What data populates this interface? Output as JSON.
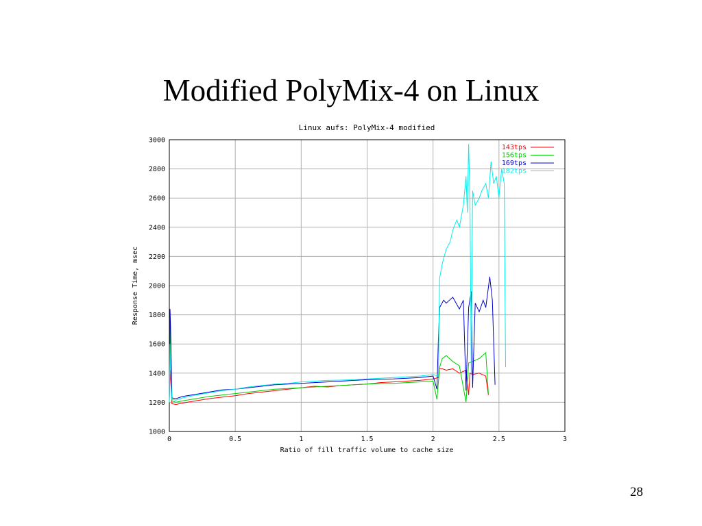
{
  "slide": {
    "title": "Modified PolyMix-4 on Linux",
    "page_number": "28"
  },
  "chart_data": {
    "type": "line",
    "title": "Linux aufs: PolyMix-4 modified",
    "xlabel": "Ratio of fill traffic volume to cache size",
    "ylabel": "Response Time, msec",
    "xlim": [
      0,
      3
    ],
    "ylim": [
      1000,
      3000
    ],
    "x_ticks": [
      0,
      0.5,
      1,
      1.5,
      2,
      2.5,
      3
    ],
    "x_tick_labels": [
      "0",
      "0.5",
      "1",
      "1.5",
      "2",
      "2.5",
      "3"
    ],
    "y_ticks": [
      1000,
      1200,
      1400,
      1600,
      1800,
      2000,
      2200,
      2400,
      2600,
      2800,
      3000
    ],
    "y_tick_labels": [
      "1000",
      "1200",
      "1400",
      "1600",
      "1800",
      "2000",
      "2200",
      "2400",
      "2600",
      "2800",
      "3000"
    ],
    "grid": true,
    "legend_position": "top-right",
    "series": [
      {
        "name": "143tps",
        "color": "#ff0000",
        "x": [
          0,
          0.005,
          0.01,
          0.02,
          0.05,
          0.1,
          0.2,
          0.3,
          0.4,
          0.5,
          0.6,
          0.7,
          0.8,
          0.9,
          1.0,
          1.1,
          1.2,
          1.3,
          1.4,
          1.5,
          1.6,
          1.7,
          1.8,
          1.9,
          2.0,
          2.04,
          2.05,
          2.07,
          2.1,
          2.15,
          2.2,
          2.25,
          2.27,
          2.28,
          2.3,
          2.35,
          2.4,
          2.42
        ],
        "y": [
          1200,
          1420,
          1350,
          1190,
          1185,
          1195,
          1210,
          1225,
          1235,
          1245,
          1260,
          1270,
          1280,
          1290,
          1300,
          1310,
          1305,
          1315,
          1320,
          1325,
          1335,
          1340,
          1345,
          1350,
          1360,
          1370,
          1430,
          1430,
          1420,
          1430,
          1400,
          1420,
          1250,
          1400,
          1390,
          1400,
          1380,
          1250
        ]
      },
      {
        "name": "156tps",
        "color": "#00cc00",
        "x": [
          0,
          0.005,
          0.01,
          0.02,
          0.05,
          0.1,
          0.2,
          0.3,
          0.4,
          0.5,
          0.6,
          0.7,
          0.8,
          0.9,
          1.0,
          1.1,
          1.2,
          1.3,
          1.4,
          1.5,
          1.6,
          1.7,
          1.8,
          1.9,
          2.0,
          2.03,
          2.05,
          2.07,
          2.1,
          2.15,
          2.2,
          2.25,
          2.27,
          2.3,
          2.35,
          2.4,
          2.42
        ],
        "y": [
          1200,
          1800,
          1500,
          1210,
          1200,
          1210,
          1225,
          1240,
          1250,
          1260,
          1270,
          1280,
          1290,
          1295,
          1300,
          1305,
          1310,
          1315,
          1320,
          1325,
          1330,
          1330,
          1335,
          1340,
          1345,
          1220,
          1440,
          1500,
          1520,
          1480,
          1450,
          1200,
          1470,
          1480,
          1500,
          1540,
          1260
        ]
      },
      {
        "name": "169tps",
        "color": "#0000cc",
        "x": [
          0,
          0.005,
          0.01,
          0.02,
          0.05,
          0.1,
          0.2,
          0.3,
          0.4,
          0.5,
          0.6,
          0.7,
          0.8,
          0.9,
          1.0,
          1.1,
          1.2,
          1.3,
          1.4,
          1.5,
          1.6,
          1.7,
          1.8,
          1.9,
          2.0,
          2.03,
          2.04,
          2.05,
          2.08,
          2.1,
          2.15,
          2.2,
          2.23,
          2.25,
          2.27,
          2.29,
          2.3,
          2.32,
          2.35,
          2.38,
          2.4,
          2.43,
          2.45,
          2.47
        ],
        "y": [
          1200,
          1840,
          1700,
          1230,
          1225,
          1240,
          1255,
          1270,
          1285,
          1290,
          1300,
          1310,
          1320,
          1325,
          1330,
          1335,
          1340,
          1345,
          1350,
          1355,
          1358,
          1360,
          1365,
          1370,
          1380,
          1290,
          1620,
          1850,
          1900,
          1880,
          1920,
          1840,
          1900,
          1280,
          1850,
          1960,
          1300,
          1880,
          1820,
          1900,
          1850,
          2060,
          1900,
          1320
        ]
      },
      {
        "name": "182tps",
        "color": "#00eeee",
        "x": [
          0,
          0.005,
          0.01,
          0.02,
          0.05,
          0.1,
          0.2,
          0.3,
          0.4,
          0.5,
          0.6,
          0.7,
          0.8,
          0.9,
          1.0,
          1.1,
          1.2,
          1.3,
          1.4,
          1.5,
          1.6,
          1.7,
          1.8,
          1.9,
          2.0,
          2.04,
          2.05,
          2.07,
          2.1,
          2.13,
          2.15,
          2.18,
          2.2,
          2.23,
          2.25,
          2.26,
          2.27,
          2.28,
          2.29,
          2.3,
          2.32,
          2.35,
          2.37,
          2.4,
          2.42,
          2.44,
          2.46,
          2.48,
          2.5,
          2.52,
          2.54,
          2.55
        ],
        "y": [
          1200,
          1600,
          1400,
          1220,
          1215,
          1230,
          1250,
          1265,
          1280,
          1290,
          1305,
          1315,
          1325,
          1330,
          1340,
          1345,
          1350,
          1352,
          1355,
          1360,
          1365,
          1370,
          1375,
          1380,
          1390,
          1380,
          2050,
          2150,
          2250,
          2300,
          2380,
          2450,
          2400,
          2550,
          2750,
          2500,
          2970,
          2600,
          1400,
          2650,
          2550,
          2600,
          2650,
          2700,
          2600,
          2850,
          2700,
          2750,
          2600,
          2800,
          2700,
          1440
        ]
      }
    ]
  }
}
